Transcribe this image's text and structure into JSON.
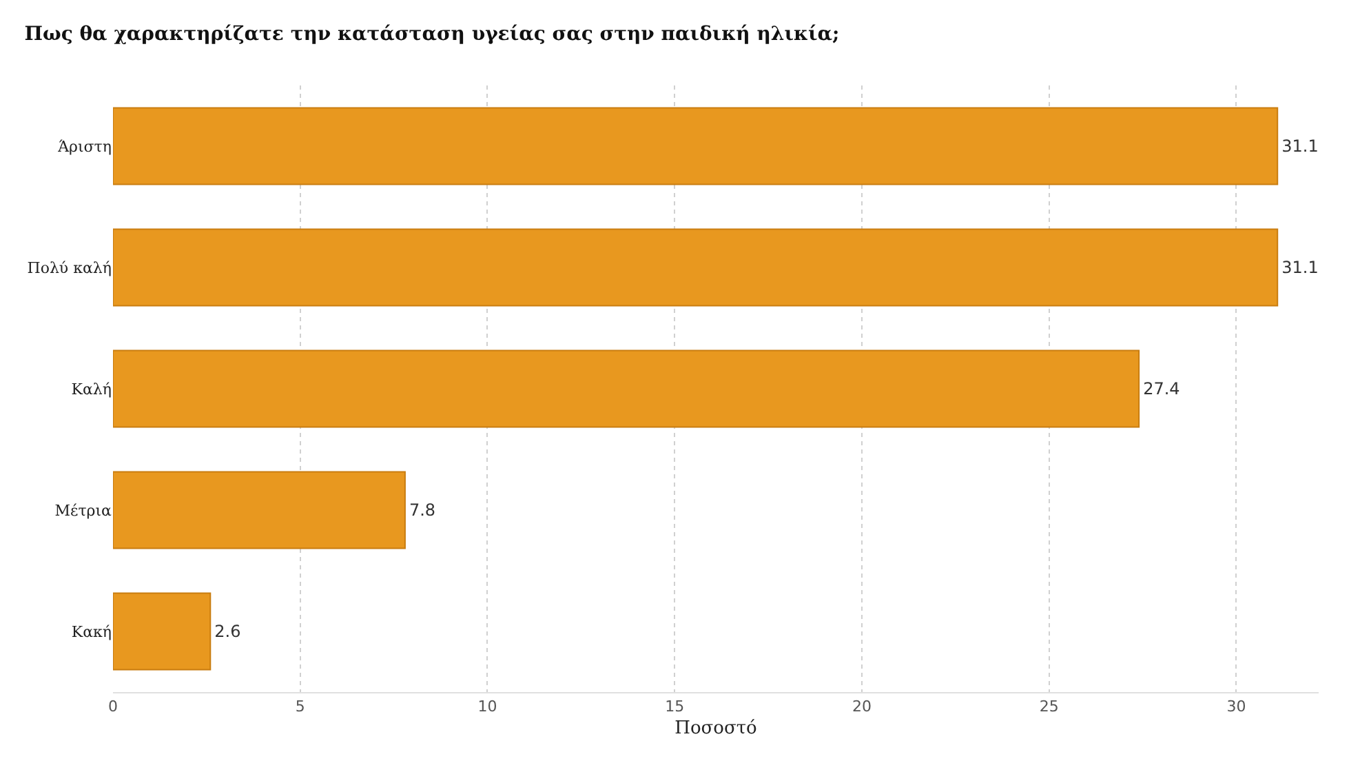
{
  "chart_data": {
    "type": "bar",
    "orientation": "horizontal",
    "title": "Πως θα χαρακτηρίζατε την κατάσταση υγείας σας στην παιδική ηλικία;",
    "xlabel": "Ποσοστό",
    "categories": [
      "Άριστη",
      "Πολύ καλή",
      "Καλή",
      "Μέτρια",
      "Κακή"
    ],
    "values": [
      31.1,
      31.1,
      27.4,
      7.8,
      2.6
    ],
    "color": "#e8981f",
    "xlim": [
      0,
      32.2
    ],
    "xticks": [
      0,
      5,
      10,
      15,
      20,
      25,
      30
    ],
    "grid": "x",
    "data_labels": true,
    "legend": false
  }
}
